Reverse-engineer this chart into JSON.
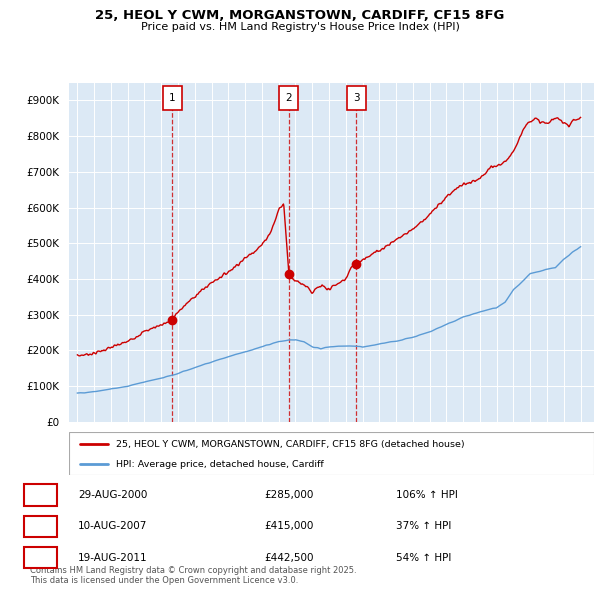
{
  "title": "25, HEOL Y CWM, MORGANSTOWN, CARDIFF, CF15 8FG",
  "subtitle": "Price paid vs. HM Land Registry's House Price Index (HPI)",
  "sales": [
    {
      "label": "1",
      "date": "29-AUG-2000",
      "price": 285000,
      "year": 2000.66,
      "pct": "106%",
      "dir": "↑"
    },
    {
      "label": "2",
      "date": "10-AUG-2007",
      "price": 415000,
      "year": 2007.61,
      "pct": "37%",
      "dir": "↑"
    },
    {
      "label": "3",
      "date": "19-AUG-2011",
      "price": 442500,
      "year": 2011.63,
      "pct": "54%",
      "dir": "↑"
    }
  ],
  "legend_line1": "25, HEOL Y CWM, MORGANSTOWN, CARDIFF, CF15 8FG (detached house)",
  "legend_line2": "HPI: Average price, detached house, Cardiff",
  "footnote": "Contains HM Land Registry data © Crown copyright and database right 2025.\nThis data is licensed under the Open Government Licence v3.0.",
  "red_color": "#cc0000",
  "blue_color": "#5b9bd5",
  "plot_bg": "#dce9f5",
  "ylim": [
    0,
    950000
  ],
  "yticks": [
    0,
    100000,
    200000,
    300000,
    400000,
    500000,
    600000,
    700000,
    800000,
    900000
  ],
  "xlim_start": 1994.5,
  "xlim_end": 2025.8,
  "xticks": [
    1995,
    1996,
    1997,
    1998,
    1999,
    2000,
    2001,
    2002,
    2003,
    2004,
    2005,
    2006,
    2007,
    2008,
    2009,
    2010,
    2011,
    2012,
    2013,
    2014,
    2015,
    2016,
    2017,
    2018,
    2019,
    2020,
    2021,
    2022,
    2023,
    2024,
    2025
  ],
  "blue_keypoints_x": [
    1995,
    1996,
    1997,
    1998,
    1999,
    2000,
    2001,
    2002,
    2003,
    2004,
    2005,
    2006,
    2007,
    2008,
    2008.5,
    2009,
    2009.5,
    2010,
    2010.5,
    2011,
    2011.5,
    2012,
    2012.5,
    2013,
    2014,
    2015,
    2016,
    2017,
    2018,
    2019,
    2020,
    2020.5,
    2021,
    2021.5,
    2022,
    2022.5,
    2023,
    2023.5,
    2024,
    2024.5,
    2025
  ],
  "blue_keypoints_y": [
    80000,
    85000,
    92000,
    100000,
    112000,
    122000,
    135000,
    152000,
    168000,
    182000,
    196000,
    210000,
    225000,
    230000,
    225000,
    210000,
    205000,
    210000,
    212000,
    213000,
    212000,
    210000,
    213000,
    218000,
    226000,
    237000,
    252000,
    273000,
    293000,
    308000,
    320000,
    335000,
    370000,
    390000,
    415000,
    420000,
    428000,
    432000,
    455000,
    475000,
    490000
  ],
  "red_base_keypoints_x": [
    1995,
    1996,
    1997,
    1998,
    1999,
    2000.66,
    2001,
    2002,
    2003,
    2004,
    2005,
    2006,
    2006.5,
    2006.8,
    2007.0,
    2007.3,
    2007.61,
    2007.9,
    2008.2,
    2008.5,
    2008.8,
    2009.0,
    2009.3,
    2009.6,
    2009.9,
    2010.2,
    2010.5,
    2010.8,
    2011.0,
    2011.3,
    2011.63,
    2012,
    2013,
    2014,
    2015,
    2016,
    2017,
    2017.5,
    2018,
    2018.5,
    2019,
    2019.3,
    2019.6,
    2019.9,
    2020.2,
    2020.5,
    2020.8,
    2021.0,
    2021.3,
    2021.6,
    2021.9,
    2022.0,
    2022.3,
    2022.6,
    2023.0,
    2023.3,
    2023.6,
    2024.0,
    2024.3,
    2024.6,
    2025.0
  ],
  "red_base_keypoints_y": [
    185000,
    192000,
    208000,
    225000,
    253000,
    285000,
    308000,
    352000,
    390000,
    420000,
    458000,
    495000,
    530000,
    565000,
    595000,
    610000,
    415000,
    400000,
    390000,
    385000,
    375000,
    360000,
    375000,
    380000,
    370000,
    378000,
    385000,
    395000,
    400000,
    430000,
    442500,
    455000,
    480000,
    510000,
    540000,
    580000,
    630000,
    650000,
    665000,
    670000,
    680000,
    695000,
    710000,
    715000,
    720000,
    730000,
    740000,
    760000,
    790000,
    820000,
    840000,
    845000,
    848000,
    840000,
    835000,
    845000,
    850000,
    840000,
    830000,
    845000,
    850000
  ]
}
